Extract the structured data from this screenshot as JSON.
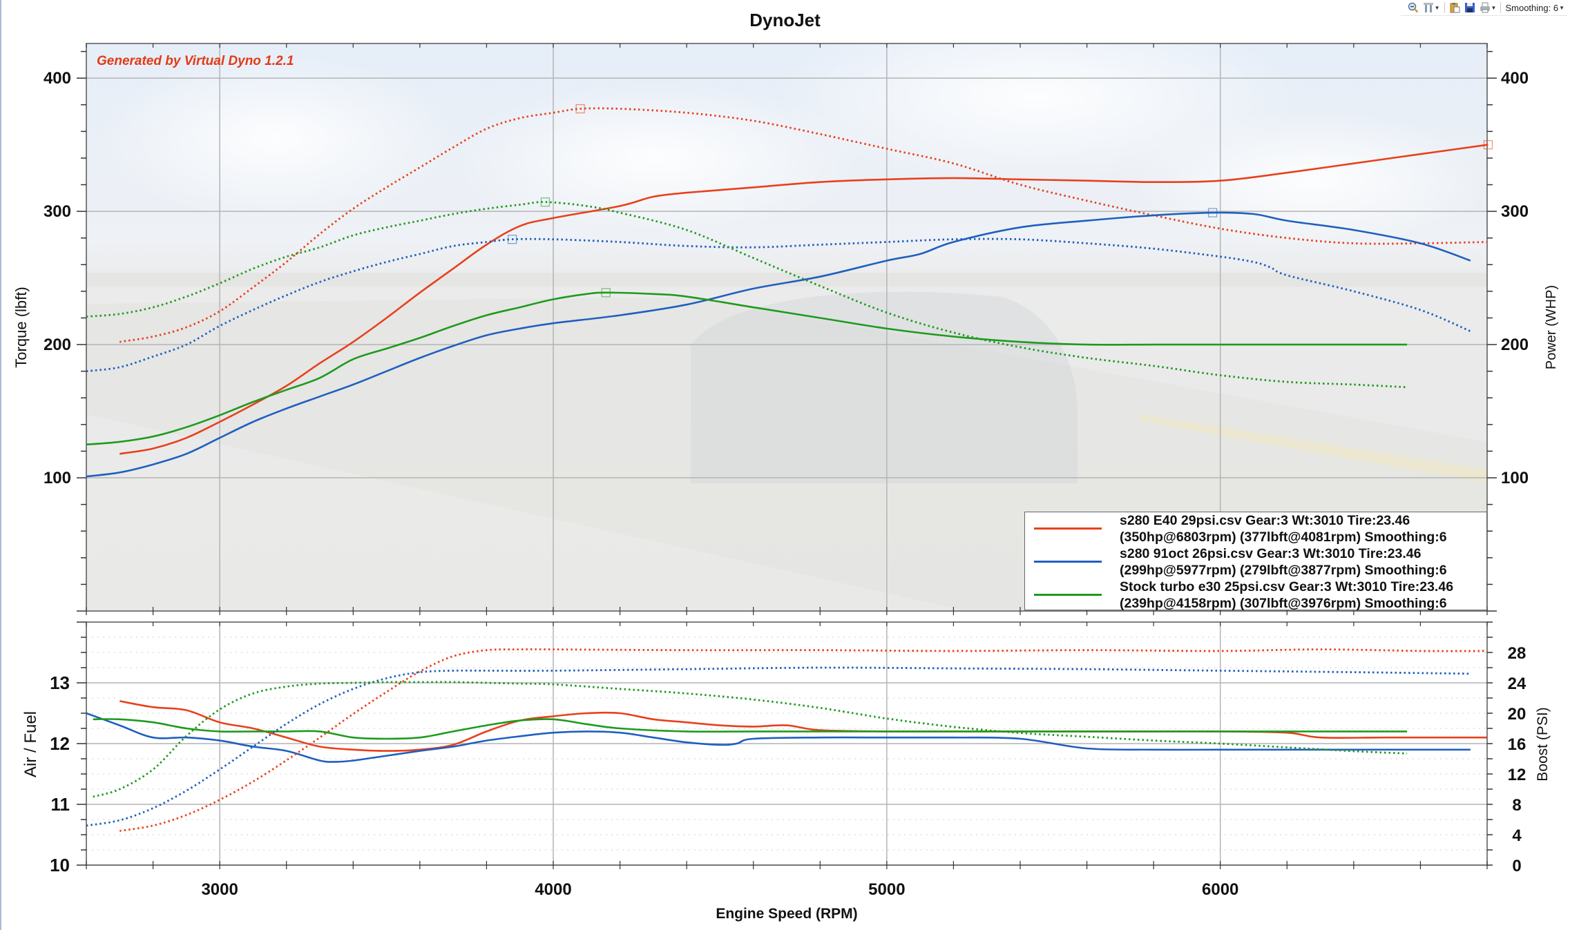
{
  "toolbar": {
    "items": [
      {
        "name": "zoom-out",
        "icon": "magnifier-minus-icon"
      },
      {
        "name": "settings",
        "icon": "tools-icon",
        "dropdown": true
      },
      {
        "name": "copy",
        "icon": "clipboard-icon"
      },
      {
        "name": "save",
        "icon": "floppy-disk-icon"
      },
      {
        "name": "print",
        "icon": "printer-icon",
        "dropdown": true
      }
    ],
    "smoothing_label": "Smoothing: 6"
  },
  "watermark": "Generated by Virtual Dyno 1.2.1",
  "colors": {
    "red": "#e8401c",
    "blue": "#1f5fbf",
    "green": "#1e9a1e",
    "watermark": "#e23a16"
  },
  "legend": [
    {
      "line1": "s280 E40 29psi.csv Gear:3 Wt:3010 Tire:23.46",
      "line2": "(350hp@6803rpm) (377lbft@4081rpm) Smoothing:6",
      "color": "#e8401c"
    },
    {
      "line1": "s280 91oct 26psi.csv Gear:3 Wt:3010 Tire:23.46",
      "line2": "(299hp@5977rpm) (279lbft@3877rpm) Smoothing:6",
      "color": "#1f5fbf"
    },
    {
      "line1": "Stock turbo e30 25psi.csv Gear:3 Wt:3010 Tire:23.46",
      "line2": "(239hp@4158rpm) (307lbft@3976rpm) Smoothing:6",
      "color": "#1e9a1e"
    }
  ],
  "chart_data": [
    {
      "type": "line",
      "title": "DynoJet",
      "xlabel": "Engine Speed (RPM)",
      "ylabel": "Torque (lbft)",
      "y2label": "Power (WHP)",
      "xlim": [
        2600,
        6800
      ],
      "ylim": [
        0,
        426
      ],
      "y2lim": [
        0,
        426
      ],
      "xticks": [
        3000,
        4000,
        5000,
        6000
      ],
      "yticks": [
        100,
        200,
        300,
        400
      ],
      "y2ticks": [
        100,
        200,
        300,
        400
      ],
      "grid": true,
      "legend_position": "bottom-right",
      "series": [
        {
          "name": "s280 E40 29psi torque",
          "color": "#e8401c",
          "style": "dotted",
          "axis": "left",
          "x": [
            2700,
            2800,
            2900,
            3000,
            3100,
            3200,
            3300,
            3400,
            3500,
            3600,
            3700,
            3800,
            3900,
            4000,
            4081,
            4200,
            4400,
            4600,
            4800,
            5000,
            5200,
            5400,
            5600,
            5800,
            6000,
            6200,
            6400,
            6600,
            6800
          ],
          "y": [
            202,
            206,
            213,
            225,
            243,
            262,
            283,
            302,
            318,
            333,
            348,
            362,
            370,
            374,
            377,
            377,
            374,
            368,
            358,
            347,
            336,
            320,
            308,
            297,
            287,
            280,
            276,
            276,
            277
          ]
        },
        {
          "name": "s280 E40 29psi power",
          "color": "#e8401c",
          "style": "solid",
          "axis": "right",
          "x": [
            2700,
            2800,
            2900,
            3000,
            3100,
            3200,
            3300,
            3400,
            3500,
            3600,
            3700,
            3800,
            3900,
            4000,
            4200,
            4300,
            4400,
            4600,
            4800,
            5000,
            5200,
            5400,
            5600,
            5800,
            6000,
            6200,
            6400,
            6600,
            6803
          ],
          "y": [
            118,
            122,
            130,
            142,
            155,
            169,
            186,
            202,
            220,
            239,
            257,
            275,
            289,
            295,
            304,
            311,
            314,
            318,
            322,
            324,
            325,
            324,
            323,
            322,
            323,
            329,
            336,
            343,
            350
          ]
        },
        {
          "name": "s280 91oct 26psi torque",
          "color": "#1f5fbf",
          "style": "dotted",
          "axis": "left",
          "x": [
            2600,
            2700,
            2800,
            2900,
            3000,
            3100,
            3200,
            3300,
            3400,
            3500,
            3600,
            3700,
            3800,
            3877,
            4000,
            4200,
            4400,
            4600,
            4800,
            5000,
            5200,
            5400,
            5600,
            5800,
            6000,
            6100,
            6150,
            6200,
            6400,
            6600,
            6750
          ],
          "y": [
            180,
            183,
            191,
            200,
            214,
            226,
            237,
            247,
            255,
            262,
            268,
            274,
            277,
            279,
            279,
            277,
            274,
            273,
            275,
            277,
            279,
            279,
            276,
            272,
            266,
            262,
            258,
            252,
            240,
            226,
            210
          ]
        },
        {
          "name": "s280 91oct 26psi power",
          "color": "#1f5fbf",
          "style": "solid",
          "axis": "right",
          "x": [
            2600,
            2700,
            2800,
            2900,
            3000,
            3100,
            3200,
            3300,
            3400,
            3500,
            3600,
            3700,
            3800,
            3900,
            4000,
            4200,
            4400,
            4600,
            4800,
            5000,
            5100,
            5200,
            5400,
            5600,
            5800,
            5977,
            6100,
            6200,
            6400,
            6600,
            6750
          ],
          "y": [
            101,
            104,
            110,
            118,
            130,
            142,
            152,
            161,
            170,
            180,
            190,
            199,
            207,
            212,
            216,
            222,
            230,
            242,
            251,
            263,
            268,
            277,
            288,
            293,
            297,
            299,
            298,
            293,
            286,
            276,
            263
          ]
        },
        {
          "name": "Stock turbo e30 25psi torque",
          "color": "#1e9a1e",
          "style": "dotted",
          "axis": "left",
          "x": [
            2600,
            2700,
            2800,
            2900,
            3000,
            3100,
            3200,
            3300,
            3400,
            3500,
            3600,
            3700,
            3800,
            3900,
            3976,
            4100,
            4200,
            4400,
            4600,
            4800,
            5000,
            5200,
            5400,
            5600,
            5800,
            6000,
            6200,
            6400,
            6560
          ],
          "y": [
            221,
            223,
            228,
            236,
            246,
            257,
            266,
            273,
            282,
            288,
            293,
            298,
            302,
            305,
            307,
            304,
            299,
            286,
            265,
            244,
            224,
            209,
            198,
            190,
            184,
            177,
            172,
            170,
            168
          ]
        },
        {
          "name": "Stock turbo e30 25psi power",
          "color": "#1e9a1e",
          "style": "solid",
          "axis": "right",
          "x": [
            2600,
            2700,
            2800,
            2900,
            3000,
            3100,
            3200,
            3300,
            3400,
            3500,
            3600,
            3700,
            3800,
            3900,
            4000,
            4100,
            4158,
            4300,
            4400,
            4600,
            4800,
            5000,
            5200,
            5400,
            5600,
            5800,
            6000,
            6200,
            6400,
            6560
          ],
          "y": [
            125,
            127,
            131,
            138,
            147,
            157,
            166,
            175,
            189,
            197,
            205,
            214,
            222,
            228,
            234,
            238,
            239,
            238,
            236,
            228,
            220,
            212,
            206,
            202,
            200,
            200,
            200,
            200,
            200,
            200
          ]
        }
      ],
      "peak_markers": [
        {
          "series": "s280 E40 29psi torque",
          "x": 4081,
          "y": 377
        },
        {
          "series": "s280 E40 29psi power",
          "x": 6803,
          "y": 350
        },
        {
          "series": "s280 91oct 26psi torque",
          "x": 3877,
          "y": 279
        },
        {
          "series": "s280 91oct 26psi power",
          "x": 5977,
          "y": 299
        },
        {
          "series": "Stock turbo e30 25psi torque",
          "x": 3976,
          "y": 307
        },
        {
          "series": "Stock turbo e30 25psi power",
          "x": 4158,
          "y": 239
        }
      ]
    },
    {
      "type": "line",
      "title": "",
      "xlabel": "Engine Speed (RPM)",
      "ylabel": "Air / Fuel",
      "y2label": "Boost (PSI)",
      "xlim": [
        2600,
        6800
      ],
      "ylim": [
        10,
        14
      ],
      "y2lim": [
        0,
        32
      ],
      "xticks": [
        3000,
        4000,
        5000,
        6000
      ],
      "yticks": [
        10,
        11,
        12,
        13
      ],
      "y2ticks": [
        0,
        4,
        8,
        12,
        16,
        20,
        24,
        28
      ],
      "grid": true,
      "series": [
        {
          "name": "s280 E40 29psi AFR",
          "color": "#e8401c",
          "style": "solid",
          "axis": "left",
          "x": [
            2700,
            2800,
            2900,
            3000,
            3100,
            3200,
            3300,
            3400,
            3500,
            3600,
            3700,
            3800,
            3900,
            4000,
            4100,
            4200,
            4300,
            4400,
            4500,
            4600,
            4700,
            4800,
            5000,
            5200,
            5400,
            5600,
            5800,
            6000,
            6200,
            6300,
            6500,
            6800
          ],
          "y": [
            12.7,
            12.6,
            12.55,
            12.35,
            12.25,
            12.1,
            11.95,
            11.9,
            11.88,
            11.9,
            11.98,
            12.2,
            12.38,
            12.45,
            12.5,
            12.5,
            12.4,
            12.35,
            12.3,
            12.28,
            12.3,
            12.22,
            12.2,
            12.2,
            12.2,
            12.2,
            12.2,
            12.2,
            12.18,
            12.1,
            12.1,
            12.1
          ]
        },
        {
          "name": "s280 91oct 26psi AFR",
          "color": "#1f5fbf",
          "style": "solid",
          "axis": "left",
          "x": [
            2600,
            2700,
            2800,
            2900,
            3000,
            3100,
            3200,
            3300,
            3350,
            3400,
            3500,
            3600,
            3700,
            3800,
            3900,
            4000,
            4100,
            4200,
            4300,
            4400,
            4500,
            4550,
            4600,
            4800,
            5000,
            5200,
            5400,
            5600,
            5800,
            6000,
            6200,
            6400,
            6750
          ],
          "y": [
            12.5,
            12.3,
            12.1,
            12.1,
            12.05,
            11.95,
            11.88,
            11.72,
            11.7,
            11.72,
            11.8,
            11.88,
            11.95,
            12.05,
            12.12,
            12.18,
            12.2,
            12.18,
            12.1,
            12.02,
            11.98,
            12.0,
            12.08,
            12.1,
            12.1,
            12.1,
            12.08,
            11.92,
            11.9,
            11.9,
            11.9,
            11.9,
            11.9
          ]
        },
        {
          "name": "Stock turbo e30 25psi AFR",
          "color": "#1e9a1e",
          "style": "solid",
          "axis": "left",
          "x": [
            2620,
            2700,
            2800,
            2900,
            3000,
            3100,
            3200,
            3300,
            3400,
            3500,
            3600,
            3700,
            3800,
            3900,
            4000,
            4100,
            4200,
            4400,
            4600,
            4800,
            5000,
            5200,
            5400,
            5600,
            5800,
            6000,
            6200,
            6400,
            6560
          ],
          "y": [
            12.4,
            12.4,
            12.35,
            12.25,
            12.2,
            12.2,
            12.2,
            12.2,
            12.1,
            12.08,
            12.1,
            12.2,
            12.3,
            12.38,
            12.4,
            12.32,
            12.25,
            12.2,
            12.2,
            12.2,
            12.2,
            12.2,
            12.2,
            12.2,
            12.2,
            12.2,
            12.2,
            12.2,
            12.2
          ]
        },
        {
          "name": "s280 E40 29psi boost",
          "color": "#e8401c",
          "style": "dotted",
          "axis": "right",
          "x": [
            2700,
            2800,
            2900,
            3000,
            3100,
            3200,
            3300,
            3400,
            3500,
            3600,
            3700,
            3800,
            3900,
            4000,
            4400,
            4800,
            5200,
            5600,
            6000,
            6300,
            6600,
            6800
          ],
          "y": [
            4.5,
            5.2,
            6.6,
            8.6,
            11.0,
            13.8,
            16.8,
            19.9,
            22.8,
            25.5,
            27.5,
            28.3,
            28.4,
            28.4,
            28.3,
            28.3,
            28.2,
            28.3,
            28.2,
            28.4,
            28.2,
            28.2
          ]
        },
        {
          "name": "s280 91oct 26psi boost",
          "color": "#1f5fbf",
          "style": "dotted",
          "axis": "right",
          "x": [
            2600,
            2700,
            2800,
            2900,
            3000,
            3100,
            3200,
            3300,
            3400,
            3500,
            3600,
            3700,
            3800,
            4000,
            4400,
            4800,
            5200,
            5600,
            6000,
            6400,
            6750
          ],
          "y": [
            5.2,
            5.9,
            7.5,
            9.8,
            12.6,
            15.6,
            18.6,
            21.2,
            23.2,
            24.6,
            25.4,
            25.6,
            25.6,
            25.6,
            25.8,
            26.0,
            25.9,
            25.8,
            25.6,
            25.4,
            25.2
          ]
        },
        {
          "name": "Stock turbo e30 25psi boost",
          "color": "#1e9a1e",
          "style": "dotted",
          "axis": "right",
          "x": [
            2620,
            2700,
            2800,
            2900,
            3000,
            3100,
            3200,
            3300,
            3400,
            3500,
            3600,
            3700,
            3800,
            3900,
            4000,
            4200,
            4400,
            4600,
            4800,
            5000,
            5200,
            5400,
            5600,
            5800,
            6000,
            6200,
            6400,
            6560
          ],
          "y": [
            9.0,
            10.0,
            12.6,
            17.0,
            20.5,
            22.6,
            23.5,
            23.9,
            24.0,
            24.1,
            24.1,
            24.1,
            24.0,
            23.9,
            23.8,
            23.2,
            22.6,
            21.8,
            20.7,
            19.3,
            18.2,
            17.4,
            16.9,
            16.4,
            16.0,
            15.5,
            15.0,
            14.7
          ]
        }
      ]
    }
  ]
}
